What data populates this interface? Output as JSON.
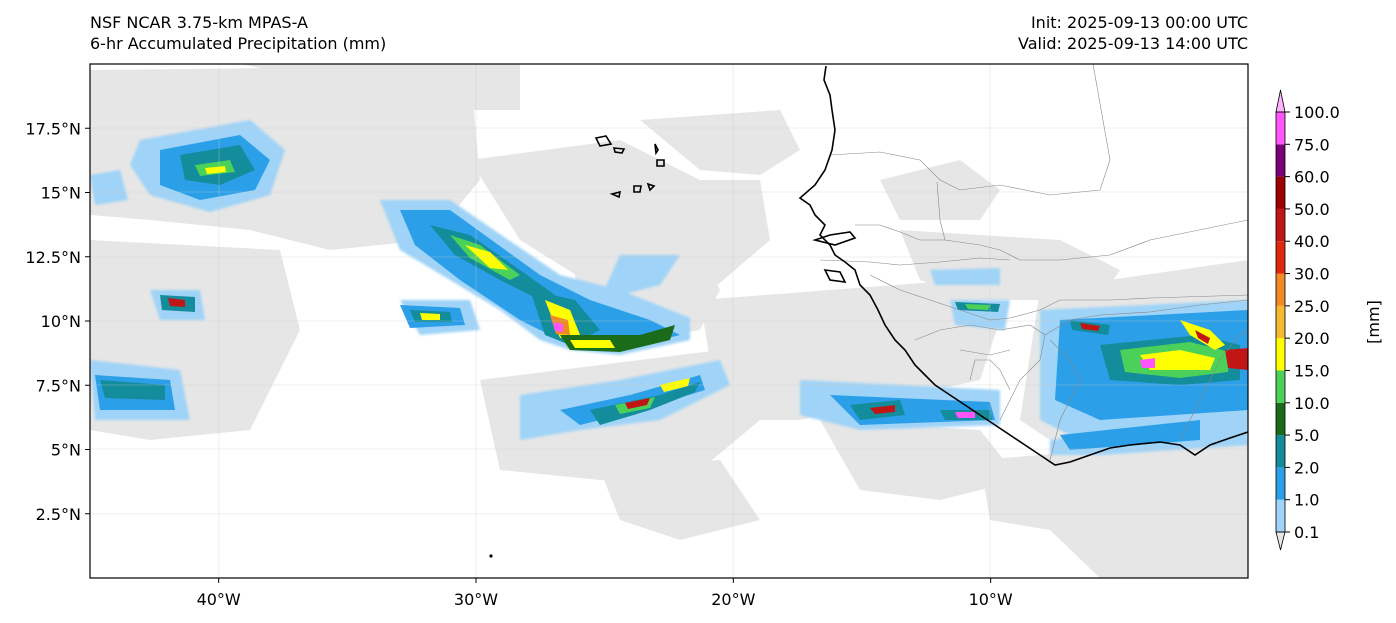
{
  "header": {
    "title_line1": "NSF NCAR 3.75-km MPAS-A",
    "title_line2": "6-hr Accumulated Precipitation (mm)",
    "init": "Init: 2025-09-13 00:00 UTC",
    "valid": "Valid: 2025-09-13 14:00 UTC"
  },
  "map": {
    "extent": {
      "lon_min": -45,
      "lon_max": -0.0,
      "lat_min": 0,
      "lat_max": 20
    },
    "lat_ticks": [
      {
        "value": 17.5,
        "label": "17.5°N"
      },
      {
        "value": 15,
        "label": "15°N"
      },
      {
        "value": 12.5,
        "label": "12.5°N"
      },
      {
        "value": 10,
        "label": "10°N"
      },
      {
        "value": 7.5,
        "label": "7.5°N"
      },
      {
        "value": 5,
        "label": "5°N"
      },
      {
        "value": 2.5,
        "label": "2.5°N"
      }
    ],
    "lon_ticks": [
      {
        "value": -40,
        "label": "40°W"
      },
      {
        "value": -30,
        "label": "30°W"
      },
      {
        "value": -20,
        "label": "20°W"
      },
      {
        "value": -10,
        "label": "10°W"
      }
    ],
    "gridlines": true
  },
  "colorbar": {
    "unit_label": "[mm]",
    "levels": [
      "0.1",
      "1.0",
      "2.0",
      "5.0",
      "10.0",
      "15.0",
      "20.0",
      "25.0",
      "30.0",
      "40.0",
      "50.0",
      "60.0",
      "75.0",
      "100.0"
    ],
    "colors": [
      "#e6e6e6",
      "#9fd3f7",
      "#2b9fe8",
      "#138c9b",
      "#1a6b1a",
      "#4bd15a",
      "#ffff00",
      "#f7b92d",
      "#ef8a24",
      "#e0280f",
      "#c01616",
      "#9c0000",
      "#7a0078",
      "#ff55ff"
    ]
  }
}
